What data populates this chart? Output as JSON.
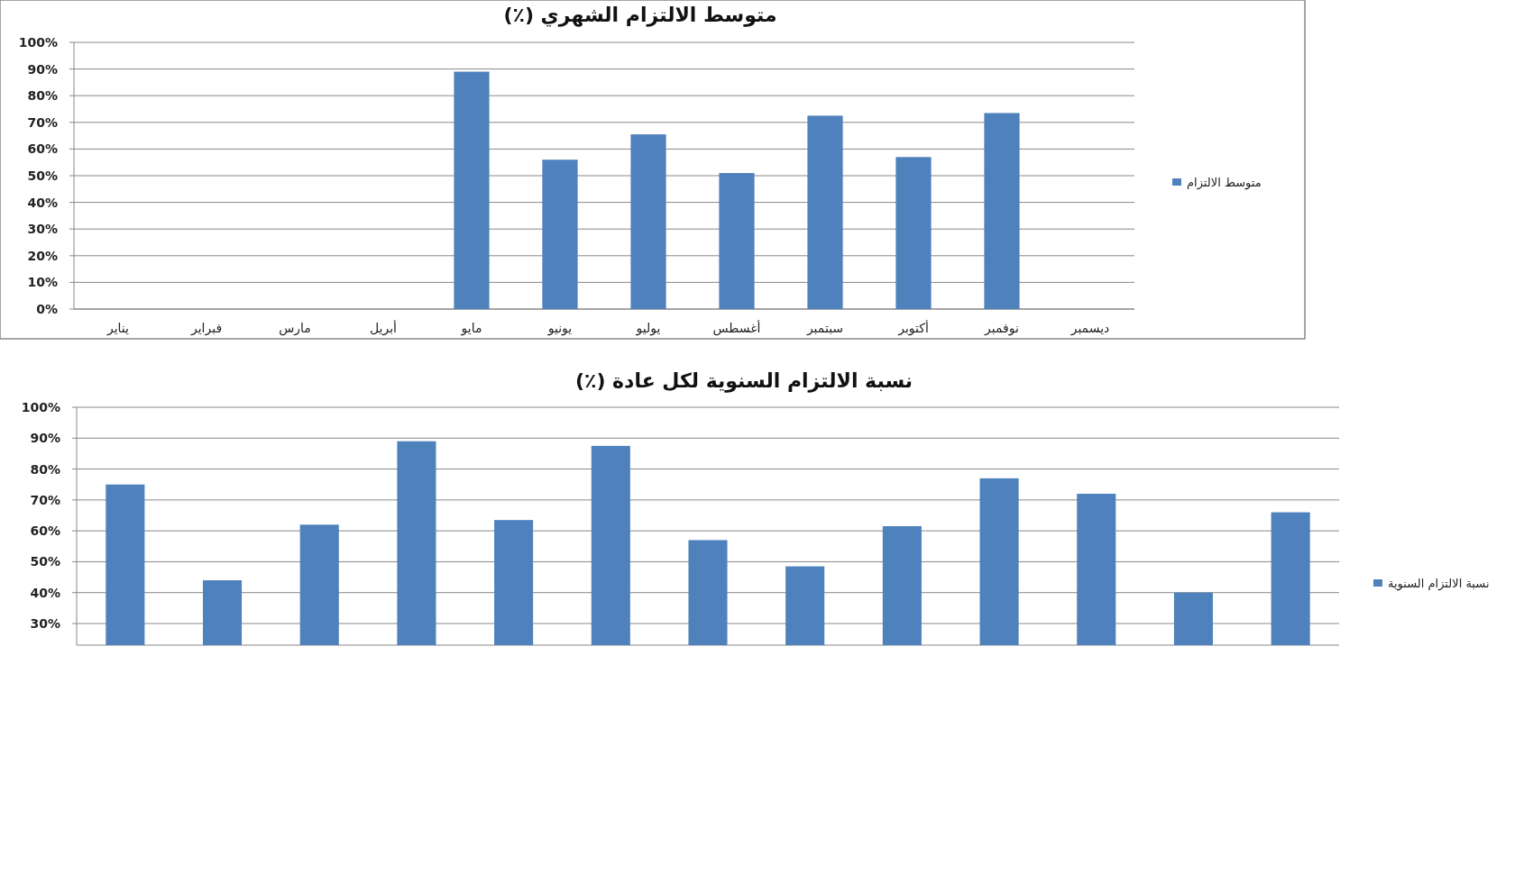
{
  "chart_data": [
    {
      "type": "bar",
      "title": "متوسط الالتزام الشهري (٪)",
      "categories": [
        "يناير",
        "فبراير",
        "مارس",
        "أبريل",
        "مايو",
        "يونيو",
        "يوليو",
        "أغسطس",
        "سبتمبر",
        "أكتوبر",
        "نوفمبر",
        "ديسمبر"
      ],
      "series": [
        {
          "name": "متوسط الالتزام",
          "color": "#4f81bd",
          "values": [
            null,
            null,
            null,
            null,
            89,
            56,
            65.5,
            51,
            72.5,
            57,
            73.5,
            null
          ]
        }
      ],
      "ylim": [
        0,
        100
      ],
      "yticks": [
        {
          "value": 0,
          "label": "0%"
        },
        {
          "value": 10,
          "label": "10%"
        },
        {
          "value": 20,
          "label": "20%"
        },
        {
          "value": 30,
          "label": "30%"
        },
        {
          "value": 40,
          "label": "40%"
        },
        {
          "value": 50,
          "label": "50%"
        },
        {
          "value": 60,
          "label": "60%"
        },
        {
          "value": 70,
          "label": "70%"
        },
        {
          "value": 80,
          "label": "80%"
        },
        {
          "value": 90,
          "label": "90%"
        },
        {
          "value": 100,
          "label": "100%"
        }
      ],
      "grid": "y",
      "legend": "right"
    },
    {
      "type": "bar",
      "title": "نسبة الالتزام السنوية لكل عادة (٪)",
      "categories": [
        null,
        null,
        null,
        null,
        null,
        null,
        null,
        null,
        null,
        null,
        null,
        null,
        null
      ],
      "series": [
        {
          "name": "نسبة الالتزام السنوية",
          "color": "#4f81bd",
          "values": [
            75,
            44,
            62,
            89,
            63.5,
            87.5,
            57,
            48.5,
            61.5,
            77,
            72,
            40,
            66
          ]
        }
      ],
      "ylim": [
        23,
        100
      ],
      "yticks": [
        {
          "value": 30,
          "label": "30%"
        },
        {
          "value": 40,
          "label": "40%"
        },
        {
          "value": 50,
          "label": "50%"
        },
        {
          "value": 60,
          "label": "60%"
        },
        {
          "value": 70,
          "label": "70%"
        },
        {
          "value": 80,
          "label": "80%"
        },
        {
          "value": 90,
          "label": "90%"
        },
        {
          "value": 100,
          "label": "100%"
        }
      ],
      "grid": "y",
      "legend": "right"
    }
  ]
}
